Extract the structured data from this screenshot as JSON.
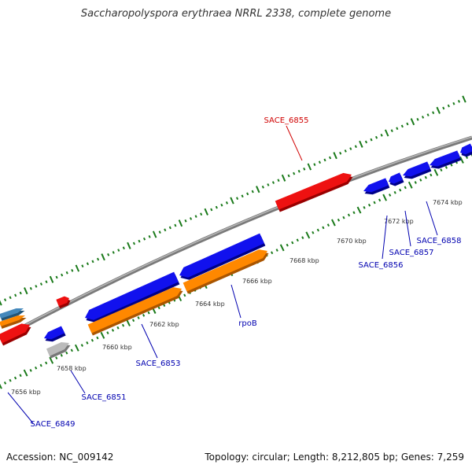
{
  "title": "Saccharopolyspora erythraea NRRL 2338, complete genome",
  "footer": {
    "accession": "Accession: NC_009142",
    "summary": "Topology: circular; Length: 8,212,805 bp; Genes: 7,259"
  },
  "scale": {
    "tick_labels": [
      "7656 kbp",
      "7658 kbp",
      "7660 kbp",
      "7662 kbp",
      "7664 kbp",
      "7666 kbp",
      "7668 kbp",
      "7670 kbp",
      "7672 kbp",
      "7674 kbp"
    ]
  },
  "gene_labels": [
    {
      "name": "SACE_6855",
      "color": "#d00000"
    },
    {
      "name": "SACE_6858",
      "color": "#0000b0"
    },
    {
      "name": "SACE_6857",
      "color": "#0000b0"
    },
    {
      "name": "SACE_6856",
      "color": "#0000b0"
    },
    {
      "name": "rpoB",
      "color": "#0000b0"
    },
    {
      "name": "SACE_6853",
      "color": "#0000b0"
    },
    {
      "name": "SACE_6851",
      "color": "#0000b0"
    },
    {
      "name": "SACE_6849",
      "color": "#0000b0"
    }
  ],
  "colors": {
    "forward_gene": "#ee1111",
    "reverse_gene": "#1111ee",
    "orange_gene": "#ff8800",
    "grey_gene": "#bbbbbb",
    "teal_gene": "#4488bb",
    "backbone": "#888888",
    "tick": "#1a7a1a"
  }
}
